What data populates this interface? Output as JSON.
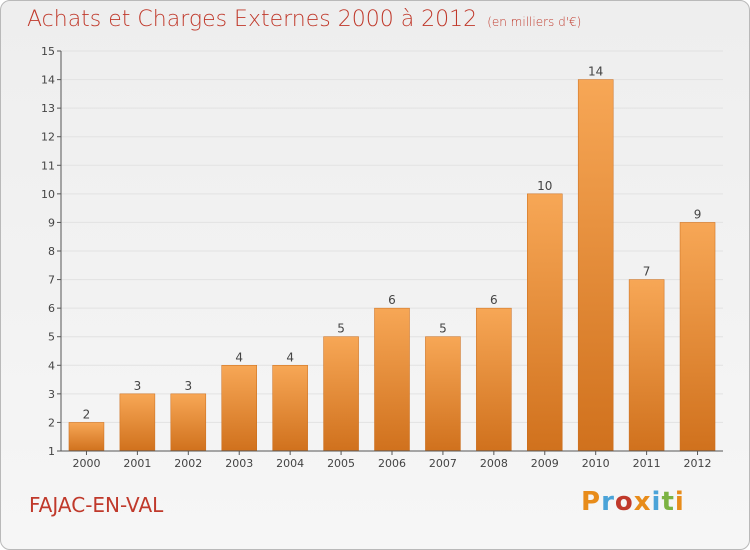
{
  "header": {
    "title": "Achats et Charges Externes 2000 à 2012",
    "unit": "(en milliers d'€)"
  },
  "footer": {
    "place": "FAJAC-EN-VAL",
    "brand": "Proxiti",
    "brand_colors": [
      "#e88c1a",
      "#4aa3d8",
      "#c0392b",
      "#e88c1a",
      "#4aa3d8",
      "#7cb342",
      "#e88c1a"
    ]
  },
  "colors": {
    "title": "#c0392b",
    "bar_light": "#f7a756",
    "bar_dark": "#d0711d",
    "grid": "#e2e2e2",
    "axis": "#555555"
  },
  "chart_data": {
    "type": "bar",
    "title": "Achats et Charges Externes 2000 à 2012",
    "xlabel": "",
    "ylabel": "",
    "ylim": [
      1,
      15
    ],
    "yticks": [
      1,
      2,
      3,
      4,
      5,
      6,
      7,
      8,
      9,
      10,
      11,
      12,
      13,
      14,
      15
    ],
    "grid": true,
    "categories": [
      "2000",
      "2001",
      "2002",
      "2003",
      "2004",
      "2005",
      "2006",
      "2007",
      "2008",
      "2009",
      "2010",
      "2011",
      "2012"
    ],
    "values": [
      2,
      3,
      3,
      4,
      4,
      5,
      6,
      5,
      6,
      10,
      14,
      7,
      9
    ],
    "data_labels": [
      "2",
      "3",
      "3",
      "4",
      "4",
      "5",
      "6",
      "5",
      "6",
      "10",
      "14",
      "7",
      "9"
    ]
  }
}
